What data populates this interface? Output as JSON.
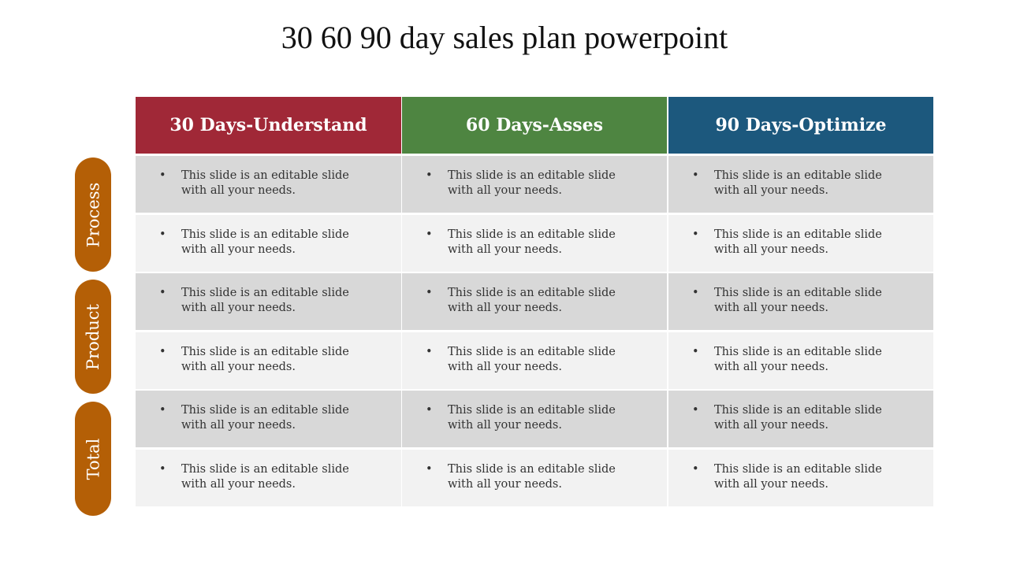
{
  "title": "30 60 90 day sales plan powerpoint",
  "columns": [
    {
      "label": "30 Days-Understand",
      "color": "#a02837"
    },
    {
      "label": "60 Days-Asses",
      "color": "#4e8541"
    },
    {
      "label": "90 Days-Optimize",
      "color": "#1c587d"
    }
  ],
  "row_groups": [
    {
      "label": "Process",
      "color": "#b45f06"
    },
    {
      "label": "Product",
      "color": "#b45f06"
    },
    {
      "label": "Total",
      "color": "#b45f06"
    }
  ],
  "row_colors": [
    "#d8d8d8",
    "#f2f2f2"
  ],
  "rows": [
    [
      "This slide is an editable slide with all your needs.",
      "This slide is an editable slide with all your needs.",
      "This slide is an editable slide with all your needs."
    ],
    [
      "This slide is an editable slide with all your needs.",
      "This slide is an editable slide with all your needs.",
      "This slide is an editable slide with all your needs."
    ],
    [
      "This slide is an editable slide with all your needs.",
      "This slide is an editable slide with all your needs.",
      "This slide is an editable slide with all your needs."
    ],
    [
      "This slide is an editable slide with all your needs.",
      "This slide is an editable slide with all your needs.",
      "This slide is an editable slide with all your needs."
    ],
    [
      "This slide is an editable slide with all your needs.",
      "This slide is an editable slide with all your needs.",
      "This slide is an editable slide with all your needs."
    ],
    [
      "This slide is an editable slide with all your needs.",
      "This slide is an editable slide with all your needs.",
      "This slide is an editable slide with all your needs."
    ]
  ],
  "bullet": "•"
}
